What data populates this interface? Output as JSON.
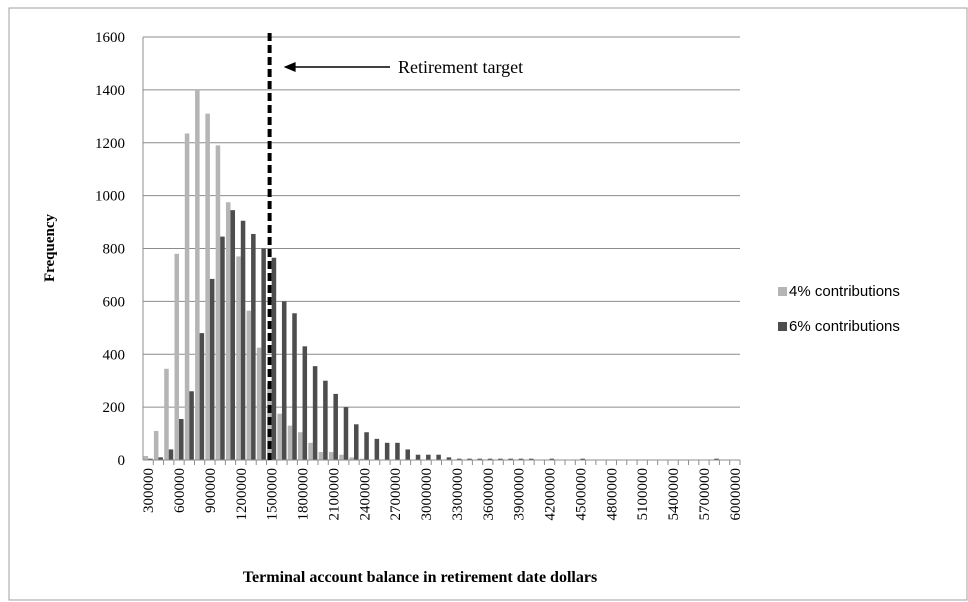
{
  "chart_data": {
    "type": "bar",
    "x_label": "Terminal account balance in retirement date dollars",
    "y_label": "Frequency",
    "categories": [
      "300000",
      null,
      null,
      "600000",
      null,
      null,
      "900000",
      null,
      null,
      "1200000",
      null,
      null,
      "1500000",
      null,
      null,
      "1800000",
      null,
      null,
      "2100000",
      null,
      null,
      "2400000",
      null,
      null,
      "2700000",
      null,
      null,
      "3000000",
      null,
      null,
      "3300000",
      null,
      null,
      "3600000",
      null,
      null,
      "3900000",
      null,
      null,
      "4200000",
      null,
      null,
      "4500000",
      null,
      null,
      "4800000",
      null,
      null,
      "5100000",
      null,
      null,
      "5400000",
      null,
      null,
      "5700000",
      null,
      null,
      "6000000"
    ],
    "series": [
      {
        "name": "4% contributions",
        "color": "#b5b5b5",
        "values": [
          15,
          110,
          345,
          780,
          1235,
          1400,
          1310,
          1190,
          975,
          770,
          565,
          425,
          290,
          175,
          130,
          105,
          65,
          30,
          30,
          20,
          10,
          5,
          0,
          0,
          0,
          0,
          0,
          0,
          0,
          0,
          0,
          0,
          0,
          0,
          0,
          0,
          0,
          0,
          0,
          0,
          0,
          0,
          0,
          0,
          0,
          0,
          0,
          0,
          0,
          0,
          0,
          0,
          0,
          0,
          0,
          0,
          0,
          0
        ]
      },
      {
        "name": "6% contributions",
        "color": "#4d4d4d",
        "values": [
          5,
          10,
          40,
          155,
          260,
          480,
          685,
          845,
          945,
          905,
          855,
          800,
          765,
          600,
          555,
          430,
          355,
          300,
          250,
          200,
          135,
          105,
          80,
          65,
          65,
          40,
          20,
          20,
          20,
          10,
          5,
          5,
          5,
          5,
          5,
          5,
          5,
          5,
          0,
          5,
          0,
          0,
          5,
          0,
          0,
          0,
          0,
          0,
          0,
          0,
          0,
          0,
          0,
          0,
          0,
          5,
          0,
          0
        ]
      }
    ],
    "ylim": [
      0,
      1600
    ],
    "yticks": [
      0,
      200,
      400,
      600,
      800,
      1000,
      1200,
      1400,
      1600
    ],
    "grid": true,
    "legend": "right",
    "annotation": {
      "text": "Retirement target",
      "x": 1480000
    }
  }
}
